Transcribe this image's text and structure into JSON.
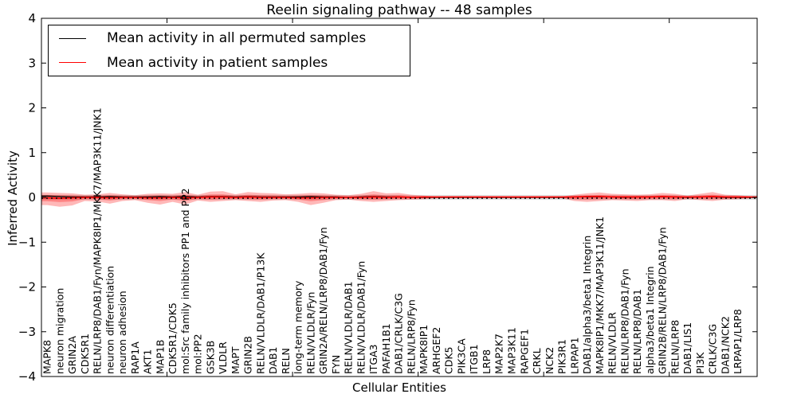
{
  "title": "Reelin signaling pathway -- 48 samples",
  "legend": {
    "items": [
      {
        "label": "Mean activity in all permuted samples",
        "color": "#000000"
      },
      {
        "label": "Mean activity in patient samples",
        "color": "#ff0000"
      }
    ]
  },
  "chart_data": {
    "type": "line",
    "title": "Reelin signaling pathway -- 48 samples",
    "xlabel": "Cellular Entities",
    "ylabel": "Inferred Activity",
    "ylim": [
      -4,
      4
    ],
    "xlim": [
      0,
      57
    ],
    "ytick_values": [
      -4,
      -3,
      -2,
      -1,
      0,
      1,
      2,
      3,
      4
    ],
    "ytick_labels": [
      "−4",
      "−3",
      "−2",
      "−1",
      "0",
      "1",
      "2",
      "3",
      "4"
    ],
    "xtick_values": [
      10,
      20,
      30,
      40,
      50
    ],
    "grid": false,
    "legend_position": "upper left",
    "zero_line": {
      "style": "dotted",
      "color": "#000000",
      "y": 0
    },
    "categories": [
      "MAPK8",
      "neuron migration",
      "GRIN2A",
      "CDK5R1",
      "RELN/LRP8/DAB1/Fyn/MAPK8IP1/MKK7/MAP3K11/JNK1",
      "neuron differentiation",
      "neuron adhesion",
      "RAP1A",
      "AKT1",
      "MAP1B",
      "CDK5R1/CDK5",
      "mol:Src family inhibitors PP1 and PP2",
      "mol:PP2",
      "GSK3B",
      "VLDLR",
      "MAPT",
      "GRIN2B",
      "RELN/VLDLR/DAB1/P13K",
      "DAB1",
      "RELN",
      "long-term memory",
      "RELN/VLDLR/Fyn",
      "GRIN2A/RELN/LRP8/DAB1/Fyn",
      "FYN",
      "RELN/VLDLR/DAB1",
      "RELN/VLDLR/DAB1/Fyn",
      "ITGA3",
      "PAFAH1B1",
      "DAB1/CRLK/C3G",
      "RELN/LRP8/Fyn",
      "MAPK8IP1",
      "ARHGEF2",
      "CDK5",
      "PIK3CA",
      "ITGB1",
      "LRP8",
      "MAP2K7",
      "MAP3K11",
      "RAPGEF1",
      "CRKL",
      "NCK2",
      "PIK3R1",
      "LRPAP1",
      "DAB1/alpha3/beta1 Integrin",
      "MAPK8IP1/MKK7/MAP3K11/JNK1",
      "RELN/VLDLR",
      "RELN/LRP8/DAB1/Fyn",
      "RELN/LRP8/DAB1",
      "alpha3/beta1 Integrin",
      "GRIN2B/RELN/LRP8/DAB1/Fyn",
      "RELN/LRP8",
      "DAB1/LIS1",
      "PI3K",
      "CRLK/C3G",
      "DAB1/NCK2",
      "LRPAP1/LRP8"
    ],
    "series": [
      {
        "name": "Mean activity in all permuted samples",
        "color": "#000000",
        "values": [
          0.03,
          0.02,
          0.01,
          0.01,
          0.01,
          0.02,
          0.01,
          0.01,
          0.01,
          0.02,
          0.01,
          0.02,
          0.01,
          0.02,
          0.02,
          0.01,
          0.02,
          0.01,
          0.01,
          0.01,
          0.01,
          0.02,
          0.01,
          0.01,
          0.0,
          0.01,
          0.02,
          0.01,
          0.01,
          0.0,
          0.0,
          0.0,
          0.0,
          0.0,
          0.0,
          0.0,
          0.0,
          0.0,
          0.0,
          0.0,
          0.0,
          0.0,
          0.01,
          0.01,
          0.01,
          0.01,
          0.0,
          0.01,
          0.01,
          0.01,
          0.01,
          0.0,
          0.01,
          0.01,
          0.0,
          0.0
        ]
      },
      {
        "name": "Mean activity in patient samples",
        "color": "#ff0000",
        "values": [
          -0.01,
          -0.02,
          -0.01,
          0.0,
          0.0,
          -0.01,
          0.0,
          0.0,
          -0.01,
          -0.01,
          0.0,
          -0.01,
          0.0,
          0.01,
          0.01,
          0.0,
          0.01,
          0.0,
          0.0,
          0.0,
          -0.01,
          -0.01,
          0.0,
          0.0,
          0.0,
          0.0,
          0.01,
          0.0,
          0.01,
          0.0,
          0.01,
          0.01,
          0.01,
          0.01,
          0.01,
          0.01,
          0.01,
          0.01,
          0.01,
          0.01,
          0.01,
          0.01,
          0.01,
          0.02,
          0.02,
          0.01,
          0.01,
          0.01,
          0.01,
          0.02,
          0.01,
          0.01,
          0.01,
          0.02,
          0.01,
          0.01
        ]
      }
    ],
    "patient_band": {
      "name": "patient sample activity spread",
      "color": "rgba(255,0,0,0.28)",
      "upper": [
        0.11,
        0.1,
        0.09,
        0.06,
        0.07,
        0.1,
        0.07,
        0.05,
        0.08,
        0.09,
        0.08,
        0.12,
        0.06,
        0.13,
        0.14,
        0.07,
        0.12,
        0.1,
        0.09,
        0.07,
        0.08,
        0.1,
        0.09,
        0.06,
        0.05,
        0.08,
        0.14,
        0.09,
        0.1,
        0.06,
        0.04,
        0.02,
        0.02,
        0.02,
        0.02,
        0.02,
        0.02,
        0.02,
        0.02,
        0.02,
        0.02,
        0.02,
        0.06,
        0.09,
        0.11,
        0.08,
        0.07,
        0.06,
        0.07,
        0.1,
        0.08,
        0.04,
        0.08,
        0.12,
        0.06,
        0.05
      ],
      "lower": [
        -0.17,
        -0.21,
        -0.18,
        -0.08,
        -0.09,
        -0.14,
        -0.08,
        -0.06,
        -0.12,
        -0.16,
        -0.1,
        -0.16,
        -0.07,
        -0.1,
        -0.08,
        -0.06,
        -0.08,
        -0.1,
        -0.07,
        -0.06,
        -0.1,
        -0.17,
        -0.12,
        -0.06,
        -0.05,
        -0.08,
        -0.1,
        -0.08,
        -0.06,
        -0.05,
        -0.04,
        -0.02,
        -0.02,
        -0.02,
        -0.02,
        -0.02,
        -0.02,
        -0.02,
        -0.02,
        -0.02,
        -0.02,
        -0.02,
        -0.08,
        -0.1,
        -0.08,
        -0.06,
        -0.07,
        -0.08,
        -0.06,
        -0.06,
        -0.08,
        -0.04,
        -0.06,
        -0.08,
        -0.05,
        -0.04
      ]
    },
    "permuted_band": {
      "name": "permuted sample activity spread",
      "color": "rgba(0,0,0,0.13)",
      "upper": 0.055,
      "lower": -0.055
    }
  }
}
